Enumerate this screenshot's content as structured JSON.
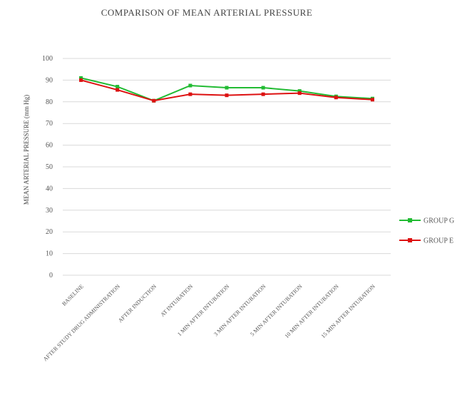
{
  "chart_data": {
    "type": "line",
    "title": "COMPARISON OF MEAN ARTERIAL PRESSURE",
    "ylabel": "MEAN ARTERIAL PRESSURE (mm Hg)",
    "xlabel": "",
    "ylim": [
      0,
      100
    ],
    "yticks": [
      0,
      10,
      20,
      30,
      40,
      50,
      60,
      70,
      80,
      90,
      100
    ],
    "grid": true,
    "legend_position": "right",
    "categories": [
      "BASELINE",
      "AFTER STUDY DRUG ADMINISTRATION",
      "AFTER INDUCTION",
      "AT INTUBATION",
      "1 MIN AFTER INTUBATION",
      "3 MIN AFTER INTUBATION",
      "5 MIN AFTER INTUBATION",
      "10 MIN AFTER INTUBATION",
      "15 MIN AFTER INTUBATION"
    ],
    "series": [
      {
        "name": "GROUP G",
        "color": "#22bb33",
        "values": [
          91,
          87,
          80.5,
          87.5,
          86.5,
          86.5,
          85,
          82.5,
          81.5
        ]
      },
      {
        "name": "GROUP E",
        "color": "#dd1111",
        "values": [
          90,
          85.5,
          80.5,
          83.5,
          83,
          83.5,
          84,
          82,
          81
        ]
      }
    ]
  }
}
